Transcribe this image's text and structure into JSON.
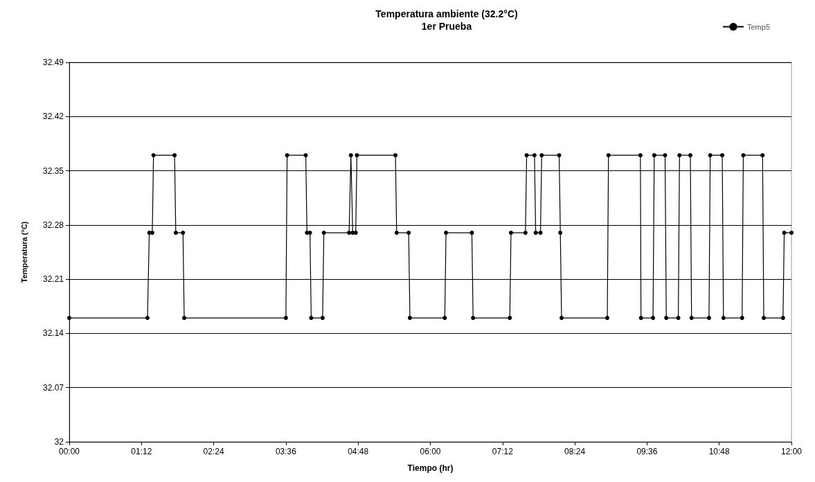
{
  "chart_data": {
    "type": "line",
    "title": "Temperatura ambiente (32.2°C)",
    "subtitle": "1er Prueba",
    "xlabel": "Tiempo (hr)",
    "ylabel": "Temperatura (°C)",
    "xlim": [
      0,
      12
    ],
    "xticks": [
      {
        "value": 0,
        "label": "00:00"
      },
      {
        "value": 1.2,
        "label": "01:12"
      },
      {
        "value": 2.4,
        "label": "02:24"
      },
      {
        "value": 3.6,
        "label": "03:36"
      },
      {
        "value": 4.8,
        "label": "04:48"
      },
      {
        "value": 6,
        "label": "06:00"
      },
      {
        "value": 7.2,
        "label": "07:12"
      },
      {
        "value": 8.4,
        "label": "08:24"
      },
      {
        "value": 9.6,
        "label": "09:36"
      },
      {
        "value": 10.8,
        "label": "10:48"
      },
      {
        "value": 12,
        "label": "12:00"
      }
    ],
    "ylim": [
      32,
      32.49
    ],
    "yticks": [
      32,
      32.07,
      32.14,
      32.21,
      32.28,
      32.35,
      32.42,
      32.49
    ],
    "grid": "y",
    "legend": "top right",
    "marker": "circle",
    "line_style": "solid",
    "x": [
      0,
      1.3,
      1.33,
      1.38,
      1.4,
      1.75,
      1.77,
      1.89,
      1.91,
      3.6,
      3.62,
      3.93,
      3.95,
      4.0,
      4.02,
      4.21,
      4.23,
      4.65,
      4.68,
      4.71,
      4.76,
      4.78,
      5.42,
      5.44,
      5.64,
      5.66,
      6.24,
      6.26,
      6.69,
      6.71,
      7.32,
      7.34,
      7.58,
      7.6,
      7.73,
      7.75,
      7.83,
      7.85,
      8.14,
      8.16,
      8.18,
      8.94,
      8.96,
      9.49,
      9.5,
      9.7,
      9.72,
      9.9,
      9.92,
      10.12,
      10.14,
      10.32,
      10.34,
      10.63,
      10.65,
      10.85,
      10.87,
      11.18,
      11.2,
      11.52,
      11.54,
      11.86,
      11.88,
      12
    ],
    "series": [
      {
        "name": "Temp5",
        "color": "#000000",
        "values": [
          32.16,
          32.16,
          32.27,
          32.27,
          32.37,
          32.37,
          32.27,
          32.27,
          32.16,
          32.16,
          32.37,
          32.37,
          32.27,
          32.27,
          32.16,
          32.16,
          32.27,
          32.27,
          32.37,
          32.27,
          32.27,
          32.37,
          32.37,
          32.27,
          32.27,
          32.16,
          32.16,
          32.27,
          32.27,
          32.16,
          32.16,
          32.27,
          32.27,
          32.37,
          32.37,
          32.27,
          32.27,
          32.37,
          32.37,
          32.27,
          32.16,
          32.16,
          32.37,
          32.37,
          32.16,
          32.16,
          32.37,
          32.37,
          32.16,
          32.16,
          32.37,
          32.37,
          32.16,
          32.16,
          32.37,
          32.37,
          32.16,
          32.16,
          32.37,
          32.37,
          32.16,
          32.16,
          32.27,
          32.27
        ]
      }
    ]
  }
}
